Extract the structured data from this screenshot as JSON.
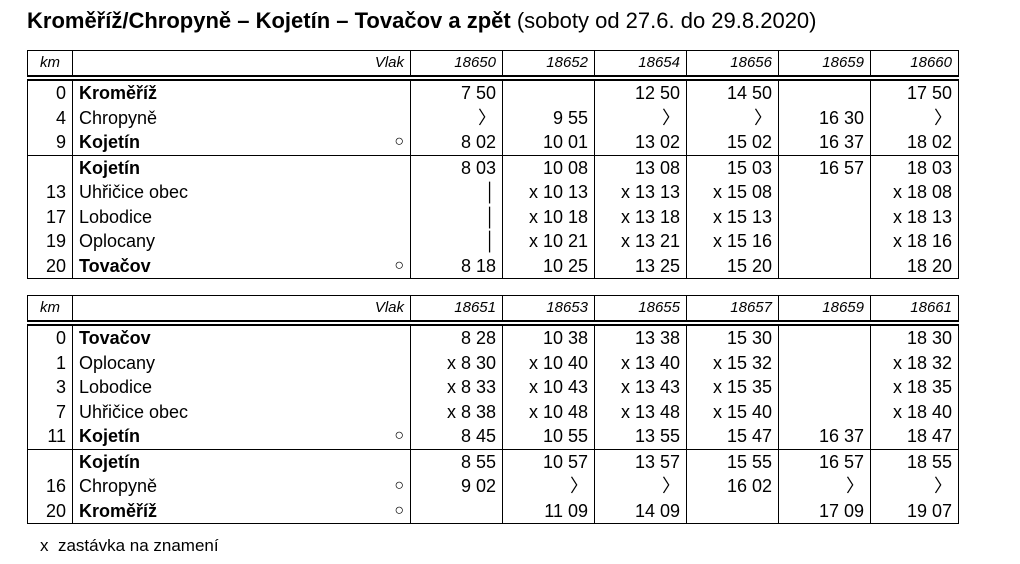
{
  "title": {
    "main": "Kroměříž/Chropyně – Kojetín – Tovačov a zpět",
    "note": "(soboty od 27.6. do 29.8.2020)"
  },
  "tables": [
    {
      "header": {
        "km": "km",
        "train": "Vlak",
        "trains": [
          "18650",
          "18652",
          "18654",
          "18656",
          "18659",
          "18660"
        ]
      },
      "sections": [
        [
          {
            "km": "0",
            "station": "Kroměříž",
            "bold": true,
            "times": [
              "7 50",
              null,
              "12 50",
              "14 50",
              null,
              "17 50"
            ]
          },
          {
            "km": "4",
            "station": "Chropyně",
            "bold": false,
            "times": [
              "〉",
              "9 55",
              "〉",
              "〉",
              "16 30",
              "〉"
            ]
          },
          {
            "km": "9",
            "station": "Kojetín",
            "bold": true,
            "mark": "○",
            "times": [
              "8 02",
              "10 01",
              "13 02",
              "15 02",
              "16 37",
              "18 02"
            ]
          }
        ],
        [
          {
            "km": null,
            "station": "Kojetín",
            "bold": true,
            "times": [
              "8 03",
              "10 08",
              "13 08",
              "15 03",
              "16 57",
              "18 03"
            ]
          },
          {
            "km": "13",
            "station": "Uhřičice obec",
            "bold": false,
            "times": [
              "│",
              "x 10 13",
              "x 13 13",
              "x 15 08",
              null,
              "x 18 08"
            ]
          },
          {
            "km": "17",
            "station": "Lobodice",
            "bold": false,
            "times": [
              "│",
              "x 10 18",
              "x 13 18",
              "x 15 13",
              null,
              "x 18 13"
            ]
          },
          {
            "km": "19",
            "station": "Oplocany",
            "bold": false,
            "times": [
              "│",
              "x 10 21",
              "x 13 21",
              "x 15 16",
              null,
              "x 18 16"
            ]
          },
          {
            "km": "20",
            "station": "Tovačov",
            "bold": true,
            "mark": "○",
            "times": [
              "8 18",
              "10 25",
              "13 25",
              "15 20",
              null,
              "18 20"
            ]
          }
        ]
      ]
    },
    {
      "header": {
        "km": "km",
        "train": "Vlak",
        "trains": [
          "18651",
          "18653",
          "18655",
          "18657",
          "18659",
          "18661"
        ]
      },
      "sections": [
        [
          {
            "km": "0",
            "station": "Tovačov",
            "bold": true,
            "times": [
              "8 28",
              "10 38",
              "13 38",
              "15 30",
              null,
              "18 30"
            ]
          },
          {
            "km": "1",
            "station": "Oplocany",
            "bold": false,
            "times": [
              "x 8 30",
              "x 10 40",
              "x 13 40",
              "x 15 32",
              null,
              "x 18 32"
            ]
          },
          {
            "km": "3",
            "station": "Lobodice",
            "bold": false,
            "times": [
              "x 8 33",
              "x 10 43",
              "x 13 43",
              "x 15 35",
              null,
              "x 18 35"
            ]
          },
          {
            "km": "7",
            "station": "Uhřičice obec",
            "bold": false,
            "times": [
              "x 8 38",
              "x 10 48",
              "x 13 48",
              "x 15 40",
              null,
              "x 18 40"
            ]
          },
          {
            "km": "11",
            "station": "Kojetín",
            "bold": true,
            "mark": "○",
            "times": [
              "8 45",
              "10 55",
              "13 55",
              "15 47",
              "16 37",
              "18 47"
            ]
          }
        ],
        [
          {
            "km": null,
            "station": "Kojetín",
            "bold": true,
            "times": [
              "8 55",
              "10 57",
              "13 57",
              "15 55",
              "16 57",
              "18 55"
            ]
          },
          {
            "km": "16",
            "station": "Chropyně",
            "bold": false,
            "mark": "○",
            "times": [
              "9 02",
              "〉",
              "〉",
              "16 02",
              "〉",
              "〉"
            ]
          },
          {
            "km": "20",
            "station": "Kroměříž",
            "bold": true,
            "mark": "○",
            "times": [
              null,
              "11 09",
              "14 09",
              null,
              "17 09",
              "19 07"
            ]
          }
        ]
      ]
    }
  ],
  "footnote": "x  zastávka na znamení"
}
